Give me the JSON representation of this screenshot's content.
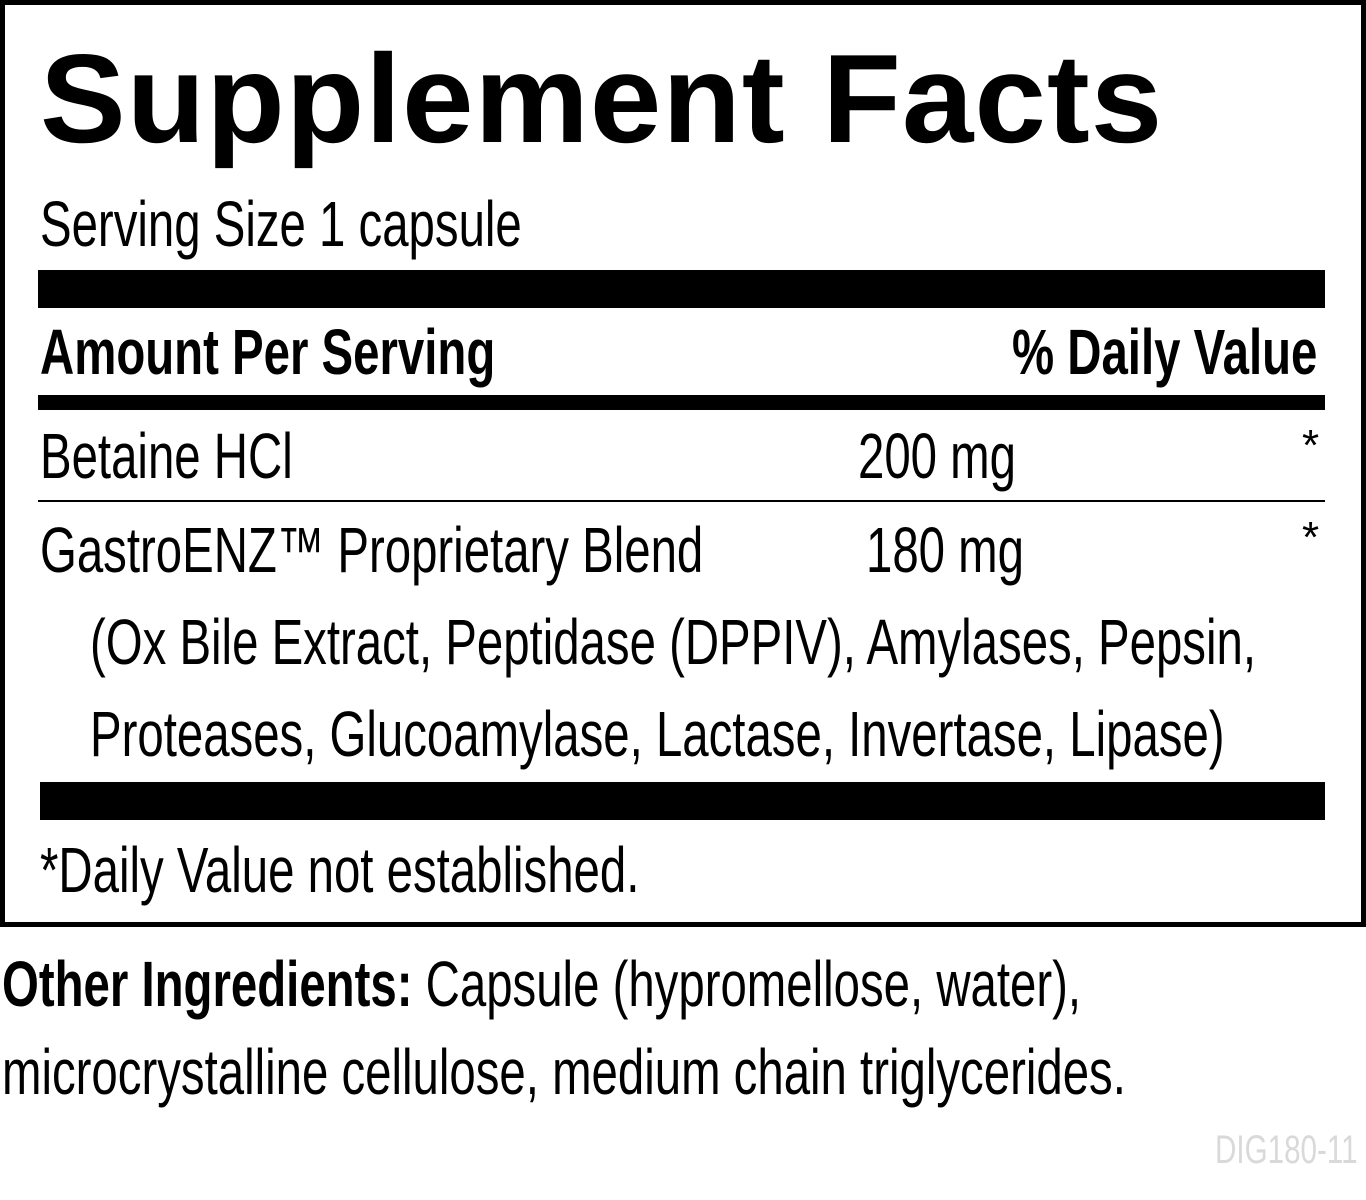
{
  "title": "Supplement Facts",
  "serving_size": "Serving Size 1 capsule",
  "header": {
    "amount": "Amount Per Serving",
    "daily_value": "% Daily Value"
  },
  "rows": [
    {
      "name": "Betaine HCl",
      "amount": "200 mg",
      "dv": "*"
    },
    {
      "name": "GastroENZ™ Proprietary Blend",
      "amount": "180 mg",
      "dv": "*"
    }
  ],
  "blend_ingredients": [
    "(Ox Bile Extract, Peptidase (DPPIV), Amylases, Pepsin,",
    "Proteases, Glucoamylase, Lactase, Invertase, Lipase)"
  ],
  "footnote": "*Daily Value not established.",
  "other_ingredients": {
    "label": "Other Ingredients:",
    "line1": " Capsule (hypromellose, water),",
    "line2": "microcrystalline cellulose, medium chain triglycerides."
  },
  "code": "DIG180-11",
  "colors": {
    "text": "#000000",
    "code": "#d9d9d9"
  }
}
